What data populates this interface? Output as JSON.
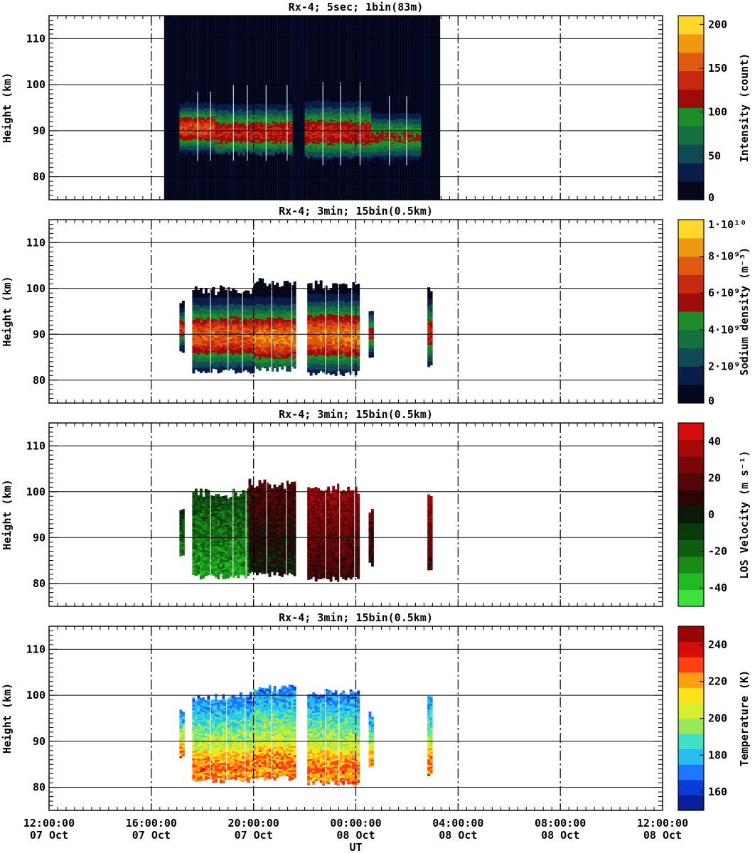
{
  "x_axis": {
    "label": "UT",
    "range_hours": [
      0,
      24
    ],
    "ticks": [
      {
        "h": 0,
        "time": "12:00:00",
        "date": "07 Oct"
      },
      {
        "h": 4,
        "time": "16:00:00",
        "date": "07 Oct"
      },
      {
        "h": 8,
        "time": "20:00:00",
        "date": "07 Oct"
      },
      {
        "h": 12,
        "time": "00:00:00",
        "date": "08 Oct"
      },
      {
        "h": 16,
        "time": "04:00:00",
        "date": "08 Oct"
      },
      {
        "h": 20,
        "time": "08:00:00",
        "date": "08 Oct"
      },
      {
        "h": 24,
        "time": "12:00:00",
        "date": "08 Oct"
      }
    ]
  },
  "chart_data": [
    {
      "type": "heatmap",
      "title": "Rx-4;  5sec; 1bin(83m)",
      "ylabel": "Height (km)",
      "ylim": [
        75,
        115
      ],
      "yticks": [
        80,
        90,
        100,
        110
      ],
      "colorbar": {
        "label": "Intensity (count)",
        "range": [
          0,
          210
        ],
        "ticks": [
          {
            "v": 0,
            "t": "0"
          },
          {
            "v": 50,
            "t": "50"
          },
          {
            "v": 100,
            "t": "100"
          },
          {
            "v": 150,
            "t": "150"
          },
          {
            "v": 200,
            "t": "200"
          }
        ],
        "colors": [
          "#05081c",
          "#0a1d4a",
          "#0f4a55",
          "#15703f",
          "#1f8c2a",
          "#9e0b0b",
          "#c72a10",
          "#df5a10",
          "#ee9a10",
          "#ffd82a"
        ]
      },
      "data_window_hours": [
        4.5,
        15.3
      ],
      "segments": [
        {
          "t": [
            5.1,
            6.5
          ],
          "center": 90.3,
          "bottom": 85.0,
          "top": 97.0,
          "peak": 150
        },
        {
          "t": [
            6.5,
            9.5
          ],
          "center": 89.5,
          "bottom": 85.0,
          "top": 98.5,
          "peak": 130
        },
        {
          "t": [
            10.0,
            12.6
          ],
          "center": 89.5,
          "bottom": 84.0,
          "top": 99.0,
          "peak": 130
        },
        {
          "t": [
            12.6,
            14.5
          ],
          "center": 88.5,
          "bottom": 84.0,
          "top": 96.0,
          "peak": 110
        }
      ]
    },
    {
      "type": "heatmap",
      "title": "Rx-4; 3min; 15bin(0.5km)",
      "ylabel": "Height (km)",
      "ylim": [
        75,
        115
      ],
      "yticks": [
        80,
        90,
        100,
        110
      ],
      "colorbar": {
        "label": "Sodium density (m⁻³)",
        "range": [
          0,
          10
        ],
        "ticks": [
          {
            "v": 0,
            "t": "0"
          },
          {
            "v": 2,
            "t": "2·10⁹"
          },
          {
            "v": 4,
            "t": "4·10⁹"
          },
          {
            "v": 6,
            "t": "6·10⁹"
          },
          {
            "v": 8,
            "t": "8·10⁹"
          },
          {
            "v": 10,
            "t": "1·10¹⁰"
          }
        ],
        "colors": [
          "#05081c",
          "#0a1d4a",
          "#0f4a55",
          "#15703f",
          "#1f8c2a",
          "#9e0b0b",
          "#c72a10",
          "#df5a10",
          "#ee9a10",
          "#ffd82a"
        ]
      },
      "segments": [
        {
          "t": [
            5.1,
            5.2
          ],
          "center": 91.0,
          "bottom": 86.5,
          "top": 96.5,
          "peak": 6.5
        },
        {
          "t": [
            5.6,
            8.0
          ],
          "center": 89.5,
          "bottom": 82.0,
          "top": 99.5,
          "peak": 7.5
        },
        {
          "t": [
            8.0,
            9.6
          ],
          "center": 89.0,
          "bottom": 82.5,
          "top": 101.0,
          "peak": 8.0
        },
        {
          "t": [
            10.1,
            12.1
          ],
          "center": 89.5,
          "bottom": 81.5,
          "top": 100.5,
          "peak": 8.0
        },
        {
          "t": [
            12.5,
            12.6
          ],
          "center": 90.0,
          "bottom": 84.5,
          "top": 95.5,
          "peak": 6.0
        },
        {
          "t": [
            14.8,
            14.9
          ],
          "center": 90.0,
          "bottom": 83.0,
          "top": 99.5,
          "peak": 6.5
        }
      ]
    },
    {
      "type": "heatmap",
      "title": "Rx-4; 3min; 15bin(0.5km)",
      "ylabel": "Height (km)",
      "ylim": [
        75,
        115
      ],
      "yticks": [
        80,
        90,
        100,
        110
      ],
      "colorbar": {
        "label": "LOS Velocity (m s⁻¹)",
        "range": [
          -50,
          50
        ],
        "ticks": [
          {
            "v": -40,
            "t": "-40"
          },
          {
            "v": -20,
            "t": "-20"
          },
          {
            "v": 0,
            "t": "0"
          },
          {
            "v": 20,
            "t": "20"
          },
          {
            "v": 40,
            "t": "40"
          }
        ],
        "colors": [
          "#3de03d",
          "#25b825",
          "#178a17",
          "#0f5e10",
          "#0a3a0a",
          "#0b1a08",
          "#2a0606",
          "#540707",
          "#7a0707",
          "#a60909",
          "#d40c0c"
        ]
      },
      "segments": [
        {
          "t": [
            5.1,
            5.2
          ],
          "value": -15,
          "bottom": 86.5,
          "top": 96.5
        },
        {
          "t": [
            5.6,
            7.8
          ],
          "value": -22,
          "bottom": 81.5,
          "top": 99.5
        },
        {
          "t": [
            7.8,
            9.6
          ],
          "value": 8,
          "bottom": 82.0,
          "top": 101.5
        },
        {
          "t": [
            10.1,
            12.1
          ],
          "value": 22,
          "bottom": 81.0,
          "top": 100.5
        },
        {
          "t": [
            12.5,
            12.6
          ],
          "value": 15,
          "bottom": 84.0,
          "top": 95.5
        },
        {
          "t": [
            14.8,
            14.9
          ],
          "value": 25,
          "bottom": 83.0,
          "top": 99.5
        }
      ]
    },
    {
      "type": "heatmap",
      "title": "Rx-4; 3min; 15bin(0.5km)",
      "ylabel": "Height (km)",
      "ylim": [
        75,
        115
      ],
      "yticks": [
        80,
        90,
        100,
        110
      ],
      "colorbar": {
        "label": "Temperature (K)",
        "range": [
          150,
          250
        ],
        "ticks": [
          {
            "v": 160,
            "t": "160"
          },
          {
            "v": 180,
            "t": "180"
          },
          {
            "v": 200,
            "t": "200"
          },
          {
            "v": 220,
            "t": "220"
          },
          {
            "v": 240,
            "t": "240"
          }
        ],
        "colors": [
          "#0a1e9a",
          "#0a3ad8",
          "#1e78ff",
          "#28bff0",
          "#40e0c8",
          "#9ae85a",
          "#d8ef30",
          "#ffe21a",
          "#ff9e10",
          "#ff4010",
          "#d60b0b",
          "#9a0505"
        ]
      },
      "segments": [
        {
          "t": [
            5.1,
            5.2
          ],
          "value": 195,
          "bottom": 86.5,
          "top": 96.5
        },
        {
          "t": [
            5.6,
            8.0
          ],
          "value": 195,
          "bottom": 81.5,
          "top": 99.5
        },
        {
          "t": [
            8.0,
            9.6
          ],
          "value": 192,
          "bottom": 82.0,
          "top": 101.5
        },
        {
          "t": [
            10.1,
            12.1
          ],
          "value": 190,
          "bottom": 81.0,
          "top": 100.5
        },
        {
          "t": [
            12.5,
            12.6
          ],
          "value": 200,
          "bottom": 84.0,
          "top": 95.5
        },
        {
          "t": [
            14.8,
            14.9
          ],
          "value": 200,
          "bottom": 83.0,
          "top": 99.5
        }
      ]
    }
  ]
}
